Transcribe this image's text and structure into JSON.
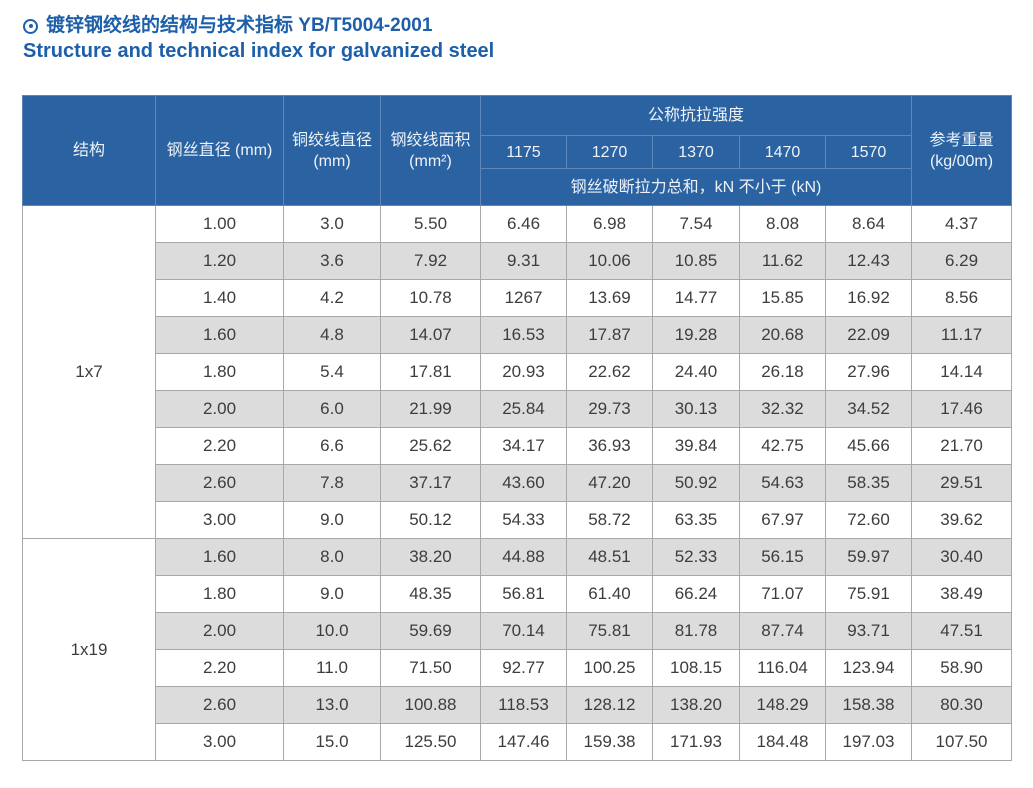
{
  "title": {
    "icon": "circle-dot-icon",
    "line1_zh": "镀锌钢绞线的结构与技术指标 YB/T5004-2001",
    "line2_en": "Structure and technical index for galvanized steel"
  },
  "colors": {
    "title_blue": "#1d5fa8",
    "header_bg": "#2a62a2",
    "header_border": "#5d87b8",
    "header_text": "#eef3f9",
    "row_alt_bg": "#dcdcdc",
    "cell_border": "#a8a8a8",
    "cell_text": "#3d3d3d"
  },
  "table": {
    "headers": {
      "structure": "结构",
      "wire_diameter": "钢丝直径 (mm)",
      "strand_diameter": "铜绞线直径 (mm)",
      "strand_area": "钢绞线面积 (mm²)",
      "tensile_strength_group": "公称抗拉强度",
      "strength_values": [
        "1175",
        "1270",
        "1370",
        "1470",
        "1570"
      ],
      "breaking_note": "钢丝破断拉力总和，kN 不小于 (kN)",
      "ref_weight": "参考重量 (kg/00m)"
    },
    "sections": [
      {
        "structure": "1x7",
        "rows": [
          [
            "1.00",
            "3.0",
            "5.50",
            "6.46",
            "6.98",
            "7.54",
            "8.08",
            "8.64",
            "4.37"
          ],
          [
            "1.20",
            "3.6",
            "7.92",
            "9.31",
            "10.06",
            "10.85",
            "11.62",
            "12.43",
            "6.29"
          ],
          [
            "1.40",
            "4.2",
            "10.78",
            "1267",
            "13.69",
            "14.77",
            "15.85",
            "16.92",
            "8.56"
          ],
          [
            "1.60",
            "4.8",
            "14.07",
            "16.53",
            "17.87",
            "19.28",
            "20.68",
            "22.09",
            "11.17"
          ],
          [
            "1.80",
            "5.4",
            "17.81",
            "20.93",
            "22.62",
            "24.40",
            "26.18",
            "27.96",
            "14.14"
          ],
          [
            "2.00",
            "6.0",
            "21.99",
            "25.84",
            "29.73",
            "30.13",
            "32.32",
            "34.52",
            "17.46"
          ],
          [
            "2.20",
            "6.6",
            "25.62",
            "34.17",
            "36.93",
            "39.84",
            "42.75",
            "45.66",
            "21.70"
          ],
          [
            "2.60",
            "7.8",
            "37.17",
            "43.60",
            "47.20",
            "50.92",
            "54.63",
            "58.35",
            "29.51"
          ],
          [
            "3.00",
            "9.0",
            "50.12",
            "54.33",
            "58.72",
            "63.35",
            "67.97",
            "72.60",
            "39.62"
          ]
        ]
      },
      {
        "structure": "1x19",
        "rows": [
          [
            "1.60",
            "8.0",
            "38.20",
            "44.88",
            "48.51",
            "52.33",
            "56.15",
            "59.97",
            "30.40"
          ],
          [
            "1.80",
            "9.0",
            "48.35",
            "56.81",
            "61.40",
            "66.24",
            "71.07",
            "75.91",
            "38.49"
          ],
          [
            "2.00",
            "10.0",
            "59.69",
            "70.14",
            "75.81",
            "81.78",
            "87.74",
            "93.71",
            "47.51"
          ],
          [
            "2.20",
            "11.0",
            "71.50",
            "92.77",
            "100.25",
            "108.15",
            "116.04",
            "123.94",
            "58.90"
          ],
          [
            "2.60",
            "13.0",
            "100.88",
            "118.53",
            "128.12",
            "138.20",
            "148.29",
            "158.38",
            "80.30"
          ],
          [
            "3.00",
            "15.0",
            "125.50",
            "147.46",
            "159.38",
            "171.93",
            "184.48",
            "197.03",
            "107.50"
          ]
        ]
      }
    ]
  }
}
